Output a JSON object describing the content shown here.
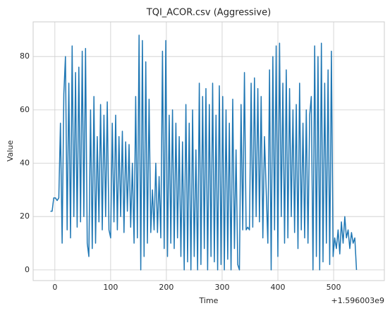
{
  "chart_data": {
    "type": "line",
    "title": "TQI_ACOR.csv (Aggressive)",
    "x_label": "Time",
    "y_label": "Value",
    "x_offset_label": "+1.596003e9",
    "x": [
      -8,
      -5,
      -2,
      1,
      4,
      7,
      10,
      13,
      16,
      19,
      22,
      25,
      28,
      31,
      34,
      37,
      40,
      43,
      46,
      49,
      52,
      55,
      58,
      61,
      64,
      67,
      70,
      73,
      76,
      79,
      82,
      85,
      88,
      91,
      94,
      97,
      100,
      103,
      106,
      109,
      112,
      115,
      118,
      121,
      124,
      127,
      130,
      133,
      136,
      139,
      142,
      145,
      148,
      151,
      154,
      157,
      160,
      163,
      166,
      169,
      172,
      175,
      178,
      181,
      184,
      187,
      190,
      193,
      196,
      199,
      202,
      205,
      208,
      211,
      214,
      217,
      220,
      223,
      226,
      229,
      232,
      235,
      238,
      241,
      244,
      247,
      250,
      253,
      256,
      259,
      262,
      265,
      268,
      271,
      274,
      277,
      280,
      283,
      286,
      289,
      292,
      295,
      298,
      301,
      304,
      307,
      310,
      313,
      316,
      319,
      322,
      325,
      328,
      331,
      334,
      337,
      340,
      343,
      346,
      349,
      352,
      355,
      358,
      361,
      364,
      367,
      370,
      373,
      376,
      379,
      382,
      385,
      388,
      391,
      394,
      397,
      400,
      403,
      406,
      409,
      412,
      415,
      418,
      421,
      424,
      427,
      430,
      433,
      436,
      439,
      442,
      445,
      448,
      451,
      454,
      457,
      460,
      463,
      466,
      469,
      472,
      475,
      478,
      481,
      484,
      487,
      490,
      493,
      496,
      499,
      502,
      505,
      508,
      511,
      514,
      517,
      520,
      523,
      526,
      529,
      532,
      535,
      538,
      541
    ],
    "series": [
      {
        "name": "Value",
        "color": "#1f77b4",
        "values": [
          22,
          22,
          27,
          27,
          26,
          27,
          55,
          10,
          66,
          80,
          15,
          70,
          12,
          84,
          20,
          74,
          16,
          76,
          18,
          82,
          20,
          83,
          10,
          5,
          60,
          8,
          65,
          10,
          50,
          18,
          62,
          15,
          58,
          20,
          63,
          15,
          12,
          55,
          18,
          58,
          15,
          50,
          20,
          52,
          14,
          48,
          22,
          47,
          16,
          40,
          10,
          65,
          12,
          88,
          0,
          86,
          5,
          78,
          10,
          64,
          14,
          30,
          15,
          40,
          14,
          35,
          12,
          82,
          8,
          86,
          5,
          58,
          10,
          60,
          8,
          55,
          12,
          50,
          5,
          48,
          0,
          62,
          3,
          55,
          0,
          60,
          5,
          45,
          0,
          70,
          2,
          65,
          8,
          68,
          0,
          62,
          5,
          70,
          3,
          58,
          0,
          69,
          2,
          65,
          0,
          60,
          4,
          55,
          0,
          64,
          8,
          45,
          2,
          0,
          62,
          15,
          74,
          15,
          16,
          15,
          70,
          16,
          72,
          20,
          68,
          18,
          65,
          12,
          50,
          30,
          10,
          75,
          0,
          80,
          15,
          84,
          5,
          85,
          20,
          70,
          10,
          75,
          12,
          68,
          20,
          60,
          14,
          62,
          8,
          70,
          15,
          55,
          12,
          60,
          10,
          58,
          65,
          0,
          84,
          5,
          80,
          0,
          85,
          3,
          70,
          10,
          75,
          2,
          82,
          5,
          12,
          8,
          15,
          6,
          18,
          10,
          20,
          12,
          15,
          8,
          14,
          10,
          12,
          0
        ]
      }
    ],
    "xlim": [
      -39,
      591
    ],
    "ylim": [
      -4,
      93
    ],
    "xticks": [
      0,
      100,
      200,
      300,
      400,
      500
    ],
    "yticks": [
      0,
      20,
      40,
      60,
      80
    ],
    "grid": true
  }
}
